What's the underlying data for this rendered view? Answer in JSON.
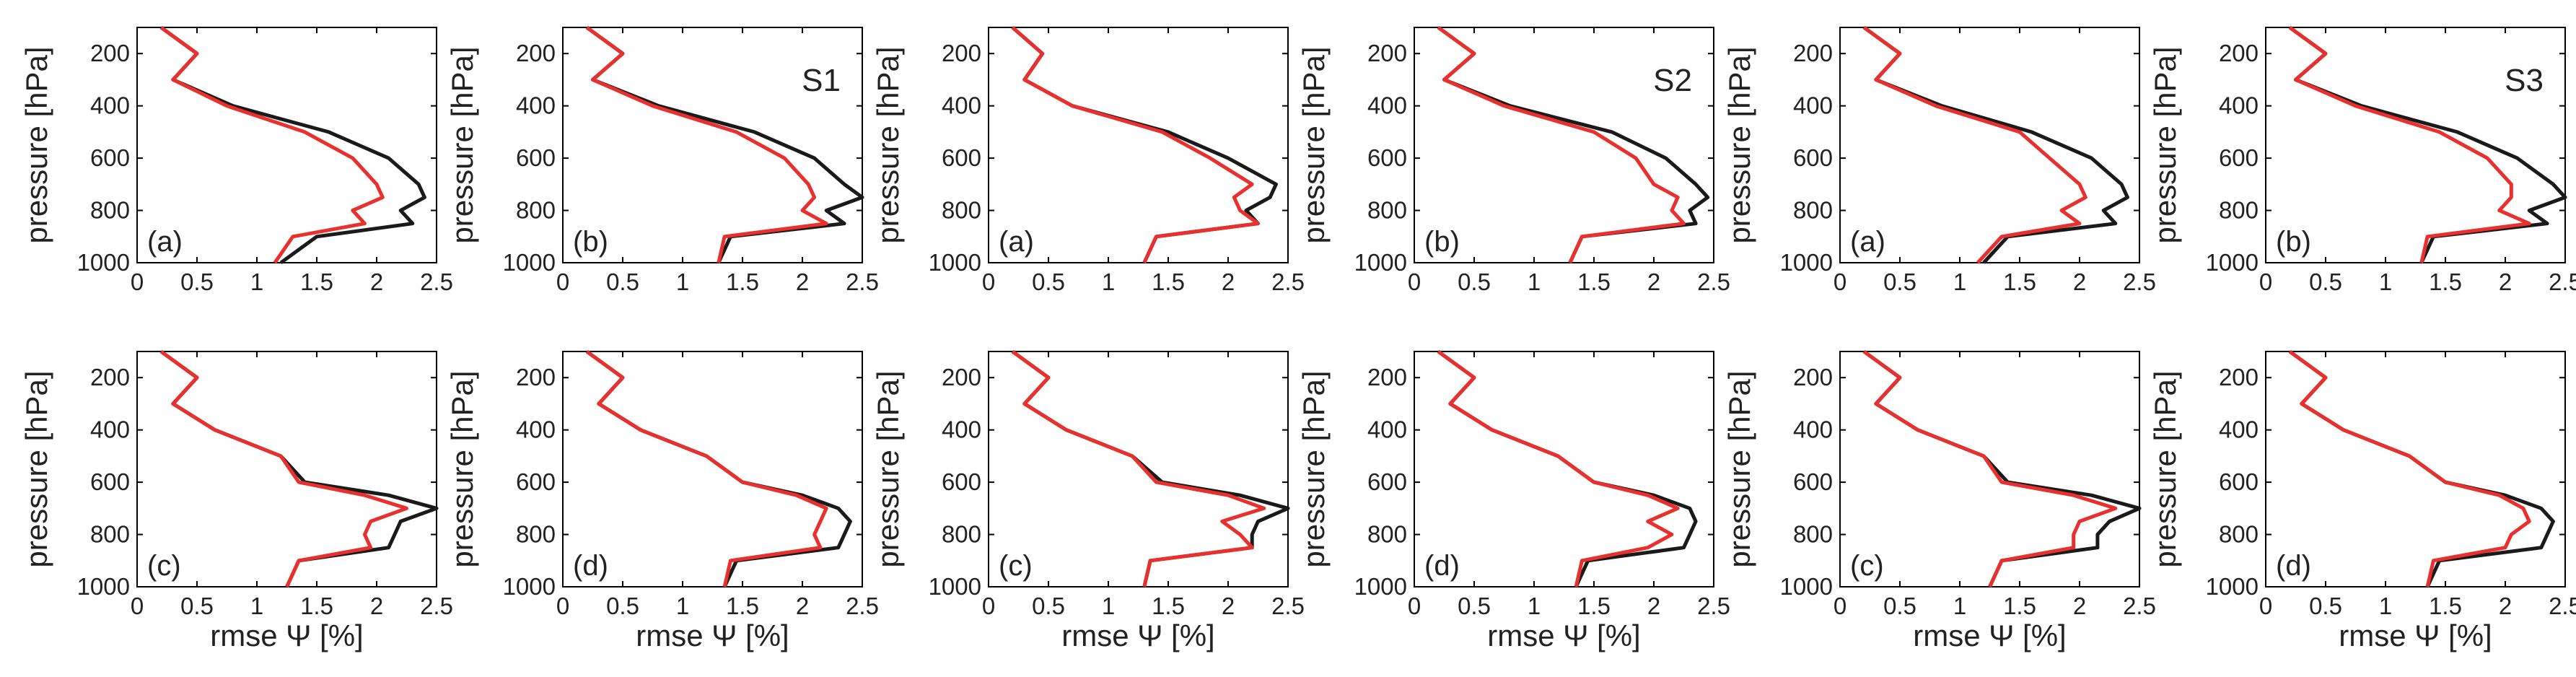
{
  "figure": {
    "xlabel": "rmse Ψ [%]",
    "ylabel": "pressure [hPa]",
    "colors": {
      "black": "#1a1a1a",
      "red": "#e8312f",
      "axis": "#000000"
    }
  },
  "chart_data": [
    {
      "type": "line",
      "group": "S1",
      "label": "(a)",
      "set_label": "",
      "xlim": [
        0,
        2.5
      ],
      "ylim": [
        1000,
        100
      ],
      "yreverse": true,
      "xticks": [
        "0",
        "0.5",
        "1",
        "1.5",
        "2",
        "2.5"
      ],
      "yticks": [
        "200",
        "400",
        "600",
        "800",
        "1000"
      ],
      "y": [
        100,
        200,
        300,
        400,
        500,
        600,
        700,
        750,
        800,
        850,
        900,
        1000
      ],
      "series": [
        {
          "name": "black",
          "color": "#1a1a1a",
          "values": [
            0.2,
            0.5,
            0.3,
            0.8,
            1.6,
            2.1,
            2.35,
            2.4,
            2.2,
            2.3,
            1.5,
            1.2
          ]
        },
        {
          "name": "red",
          "color": "#e8312f",
          "values": [
            0.2,
            0.5,
            0.3,
            0.75,
            1.4,
            1.8,
            2.0,
            2.05,
            1.8,
            1.9,
            1.3,
            1.15
          ]
        }
      ]
    },
    {
      "type": "line",
      "group": "S1",
      "label": "(b)",
      "set_label": "S1",
      "xlim": [
        0,
        2.5
      ],
      "ylim": [
        1000,
        100
      ],
      "yreverse": true,
      "xticks": [
        "0",
        "0.5",
        "1",
        "1.5",
        "2",
        "2.5"
      ],
      "yticks": [
        "200",
        "400",
        "600",
        "800",
        "1000"
      ],
      "y": [
        100,
        200,
        300,
        400,
        500,
        600,
        700,
        750,
        800,
        850,
        900,
        1000
      ],
      "series": [
        {
          "name": "black",
          "color": "#1a1a1a",
          "values": [
            0.2,
            0.5,
            0.25,
            0.8,
            1.6,
            2.1,
            2.35,
            2.5,
            2.2,
            2.35,
            1.4,
            1.3
          ]
        },
        {
          "name": "red",
          "color": "#e8312f",
          "values": [
            0.2,
            0.5,
            0.25,
            0.75,
            1.45,
            1.85,
            2.05,
            2.1,
            2.0,
            2.2,
            1.35,
            1.3
          ]
        }
      ]
    },
    {
      "type": "line",
      "group": "S2",
      "label": "(a)",
      "set_label": "",
      "xlim": [
        0,
        2.5
      ],
      "ylim": [
        1000,
        100
      ],
      "yreverse": true,
      "xticks": [
        "0",
        "0.5",
        "1",
        "1.5",
        "2",
        "2.5"
      ],
      "yticks": [
        "200",
        "400",
        "600",
        "800",
        "1000"
      ],
      "y": [
        100,
        200,
        300,
        400,
        500,
        600,
        700,
        750,
        800,
        850,
        900,
        1000
      ],
      "series": [
        {
          "name": "black",
          "color": "#1a1a1a",
          "values": [
            0.2,
            0.45,
            0.3,
            0.7,
            1.5,
            2.0,
            2.4,
            2.35,
            2.15,
            2.25,
            1.4,
            1.3
          ]
        },
        {
          "name": "red",
          "color": "#e8312f",
          "values": [
            0.2,
            0.45,
            0.3,
            0.7,
            1.45,
            1.85,
            2.2,
            2.05,
            2.1,
            2.25,
            1.4,
            1.3
          ]
        }
      ]
    },
    {
      "type": "line",
      "group": "S2",
      "label": "(b)",
      "set_label": "S2",
      "xlim": [
        0,
        2.5
      ],
      "ylim": [
        1000,
        100
      ],
      "yreverse": true,
      "xticks": [
        "0",
        "0.5",
        "1",
        "1.5",
        "2",
        "2.5"
      ],
      "yticks": [
        "200",
        "400",
        "600",
        "800",
        "1000"
      ],
      "y": [
        100,
        200,
        300,
        400,
        500,
        600,
        700,
        750,
        800,
        850,
        900,
        1000
      ],
      "series": [
        {
          "name": "black",
          "color": "#1a1a1a",
          "values": [
            0.2,
            0.5,
            0.25,
            0.8,
            1.65,
            2.1,
            2.35,
            2.45,
            2.3,
            2.35,
            1.4,
            1.3
          ]
        },
        {
          "name": "red",
          "color": "#e8312f",
          "values": [
            0.2,
            0.5,
            0.25,
            0.75,
            1.5,
            1.85,
            2.0,
            2.2,
            2.15,
            2.25,
            1.4,
            1.3
          ]
        }
      ]
    },
    {
      "type": "line",
      "group": "S3",
      "label": "(a)",
      "set_label": "",
      "xlim": [
        0,
        2.5
      ],
      "ylim": [
        1000,
        100
      ],
      "yreverse": true,
      "xticks": [
        "0",
        "0.5",
        "1",
        "1.5",
        "2",
        "2.5"
      ],
      "yticks": [
        "200",
        "400",
        "600",
        "800",
        "1000"
      ],
      "y": [
        100,
        200,
        300,
        400,
        500,
        600,
        700,
        750,
        800,
        850,
        900,
        1000
      ],
      "series": [
        {
          "name": "black",
          "color": "#1a1a1a",
          "values": [
            0.2,
            0.5,
            0.3,
            0.85,
            1.6,
            2.1,
            2.35,
            2.4,
            2.2,
            2.3,
            1.4,
            1.2
          ]
        },
        {
          "name": "red",
          "color": "#e8312f",
          "values": [
            0.2,
            0.5,
            0.3,
            0.8,
            1.5,
            1.75,
            2.0,
            2.05,
            1.85,
            2.0,
            1.35,
            1.15
          ]
        }
      ]
    },
    {
      "type": "line",
      "group": "S3",
      "label": "(b)",
      "set_label": "S3",
      "xlim": [
        0,
        2.5
      ],
      "ylim": [
        1000,
        100
      ],
      "yreverse": true,
      "xticks": [
        "0",
        "0.5",
        "1",
        "1.5",
        "2",
        "2.5"
      ],
      "yticks": [
        "200",
        "400",
        "600",
        "800",
        "1000"
      ],
      "y": [
        100,
        200,
        300,
        400,
        500,
        600,
        700,
        750,
        800,
        850,
        900,
        1000
      ],
      "series": [
        {
          "name": "black",
          "color": "#1a1a1a",
          "values": [
            0.2,
            0.5,
            0.25,
            0.8,
            1.6,
            2.1,
            2.4,
            2.5,
            2.2,
            2.35,
            1.4,
            1.3
          ]
        },
        {
          "name": "red",
          "color": "#e8312f",
          "values": [
            0.2,
            0.5,
            0.25,
            0.75,
            1.45,
            1.85,
            2.05,
            2.05,
            1.95,
            2.2,
            1.35,
            1.3
          ]
        }
      ]
    },
    {
      "type": "line",
      "group": "S1",
      "label": "(c)",
      "set_label": "",
      "xlim": [
        0,
        2.5
      ],
      "ylim": [
        1000,
        100
      ],
      "yreverse": true,
      "xticks": [
        "0",
        "0.5",
        "1",
        "1.5",
        "2",
        "2.5"
      ],
      "yticks": [
        "200",
        "400",
        "600",
        "800",
        "1000"
      ],
      "y": [
        100,
        200,
        300,
        400,
        500,
        600,
        650,
        700,
        750,
        800,
        850,
        900,
        1000
      ],
      "series": [
        {
          "name": "black",
          "color": "#1a1a1a",
          "values": [
            0.2,
            0.5,
            0.3,
            0.65,
            1.2,
            1.4,
            2.1,
            2.5,
            2.2,
            2.15,
            2.1,
            1.35,
            1.25
          ]
        },
        {
          "name": "red",
          "color": "#e8312f",
          "values": [
            0.2,
            0.5,
            0.3,
            0.65,
            1.2,
            1.35,
            1.9,
            2.25,
            1.95,
            1.9,
            1.95,
            1.35,
            1.25
          ]
        }
      ]
    },
    {
      "type": "line",
      "group": "S1",
      "label": "(d)",
      "set_label": "",
      "xlim": [
        0,
        2.5
      ],
      "ylim": [
        1000,
        100
      ],
      "yreverse": true,
      "xticks": [
        "0",
        "0.5",
        "1",
        "1.5",
        "2",
        "2.5"
      ],
      "yticks": [
        "200",
        "400",
        "600",
        "800",
        "1000"
      ],
      "y": [
        100,
        200,
        300,
        400,
        500,
        600,
        650,
        700,
        750,
        800,
        850,
        900,
        1000
      ],
      "series": [
        {
          "name": "black",
          "color": "#1a1a1a",
          "values": [
            0.2,
            0.5,
            0.3,
            0.65,
            1.2,
            1.5,
            2.0,
            2.3,
            2.4,
            2.35,
            2.3,
            1.45,
            1.35
          ]
        },
        {
          "name": "red",
          "color": "#e8312f",
          "values": [
            0.2,
            0.5,
            0.3,
            0.65,
            1.2,
            1.5,
            1.95,
            2.2,
            2.15,
            2.1,
            2.15,
            1.4,
            1.35
          ]
        }
      ]
    },
    {
      "type": "line",
      "group": "S2",
      "label": "(c)",
      "set_label": "",
      "xlim": [
        0,
        2.5
      ],
      "ylim": [
        1000,
        100
      ],
      "yreverse": true,
      "xticks": [
        "0",
        "0.5",
        "1",
        "1.5",
        "2",
        "2.5"
      ],
      "yticks": [
        "200",
        "400",
        "600",
        "800",
        "1000"
      ],
      "y": [
        100,
        200,
        300,
        400,
        500,
        600,
        650,
        700,
        750,
        800,
        850,
        900,
        1000
      ],
      "series": [
        {
          "name": "black",
          "color": "#1a1a1a",
          "values": [
            0.2,
            0.5,
            0.3,
            0.65,
            1.2,
            1.45,
            2.1,
            2.5,
            2.25,
            2.2,
            2.2,
            1.35,
            1.3
          ]
        },
        {
          "name": "red",
          "color": "#e8312f",
          "values": [
            0.2,
            0.5,
            0.3,
            0.65,
            1.2,
            1.4,
            2.0,
            2.3,
            1.95,
            2.1,
            2.2,
            1.35,
            1.3
          ]
        }
      ]
    },
    {
      "type": "line",
      "group": "S2",
      "label": "(d)",
      "set_label": "",
      "xlim": [
        0,
        2.5
      ],
      "ylim": [
        1000,
        100
      ],
      "yreverse": true,
      "xticks": [
        "0",
        "0.5",
        "1",
        "1.5",
        "2",
        "2.5"
      ],
      "yticks": [
        "200",
        "400",
        "600",
        "800",
        "1000"
      ],
      "y": [
        100,
        200,
        300,
        400,
        500,
        600,
        650,
        700,
        750,
        800,
        850,
        900,
        1000
      ],
      "series": [
        {
          "name": "black",
          "color": "#1a1a1a",
          "values": [
            0.2,
            0.5,
            0.3,
            0.65,
            1.2,
            1.5,
            2.0,
            2.3,
            2.35,
            2.3,
            2.25,
            1.45,
            1.35
          ]
        },
        {
          "name": "red",
          "color": "#e8312f",
          "values": [
            0.2,
            0.5,
            0.3,
            0.65,
            1.2,
            1.5,
            1.95,
            2.2,
            1.95,
            2.15,
            1.95,
            1.4,
            1.35
          ]
        }
      ]
    },
    {
      "type": "line",
      "group": "S3",
      "label": "(c)",
      "set_label": "",
      "xlim": [
        0,
        2.5
      ],
      "ylim": [
        1000,
        100
      ],
      "yreverse": true,
      "xticks": [
        "0",
        "0.5",
        "1",
        "1.5",
        "2",
        "2.5"
      ],
      "yticks": [
        "200",
        "400",
        "600",
        "800",
        "1000"
      ],
      "y": [
        100,
        200,
        300,
        400,
        500,
        600,
        650,
        700,
        750,
        800,
        850,
        900,
        1000
      ],
      "series": [
        {
          "name": "black",
          "color": "#1a1a1a",
          "values": [
            0.2,
            0.5,
            0.3,
            0.65,
            1.2,
            1.4,
            2.1,
            2.5,
            2.25,
            2.15,
            2.15,
            1.35,
            1.25
          ]
        },
        {
          "name": "red",
          "color": "#e8312f",
          "values": [
            0.2,
            0.5,
            0.3,
            0.65,
            1.2,
            1.35,
            1.95,
            2.3,
            2.0,
            1.95,
            1.95,
            1.35,
            1.25
          ]
        }
      ]
    },
    {
      "type": "line",
      "group": "S3",
      "label": "(d)",
      "set_label": "",
      "xlim": [
        0,
        2.5
      ],
      "ylim": [
        1000,
        100
      ],
      "yreverse": true,
      "xticks": [
        "0",
        "0.5",
        "1",
        "1.5",
        "2",
        "2.5"
      ],
      "yticks": [
        "200",
        "400",
        "600",
        "800",
        "1000"
      ],
      "y": [
        100,
        200,
        300,
        400,
        500,
        600,
        650,
        700,
        750,
        800,
        850,
        900,
        1000
      ],
      "series": [
        {
          "name": "black",
          "color": "#1a1a1a",
          "values": [
            0.2,
            0.5,
            0.3,
            0.65,
            1.2,
            1.5,
            2.0,
            2.3,
            2.4,
            2.35,
            2.3,
            1.45,
            1.35
          ]
        },
        {
          "name": "red",
          "color": "#e8312f",
          "values": [
            0.2,
            0.5,
            0.3,
            0.65,
            1.2,
            1.5,
            1.95,
            2.15,
            2.2,
            2.05,
            2.0,
            1.4,
            1.35
          ]
        }
      ]
    }
  ]
}
